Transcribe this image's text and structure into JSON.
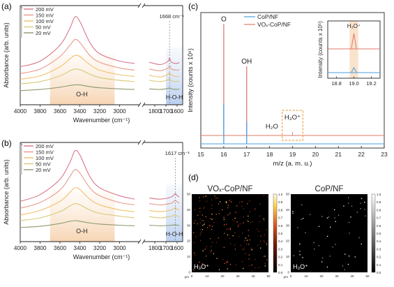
{
  "figure": {
    "panels": {
      "a": {
        "label": "(a)",
        "legend": [
          "200 mV",
          "150 mV",
          "100 mV",
          "50 mV",
          "20 mV"
        ],
        "peak_label": "1668 cm⁻¹",
        "region_left": "O-H",
        "region_right": "H-O-H"
      },
      "b": {
        "label": "(b)",
        "legend": [
          "200 mV",
          "150 mV",
          "100 mV",
          "50 mV",
          "20 mV"
        ],
        "peak_label": "1617 cm⁻¹",
        "region_left": "O-H",
        "region_right": "H-O-H"
      },
      "c": {
        "label": "(c)",
        "legend": [
          "CoP/NF",
          "VOₓ-CoP/NF"
        ],
        "peak_labels": [
          "O",
          "OH",
          "H₂O",
          "H₃O⁺"
        ],
        "inset_peak_label": "H₃O⁺"
      },
      "d": {
        "label": "(d)",
        "map_titles": [
          "VOₓ-CoP/NF",
          "CoP/NF"
        ],
        "map_ion_label": "H₃O⁺",
        "map_unit": "μm",
        "colorbar_ticks": [
          "1.0",
          "0.9",
          "0.8",
          "0.7",
          "0.6",
          "0.5",
          "0.4",
          "0.3",
          "0.2",
          "0.1",
          "0.0"
        ]
      }
    },
    "colors": {
      "200 mV": "#d9788a",
      "150 mV": "#e89a8a",
      "100 mV": "#f0c16a",
      "50 mV": "#d9c87a",
      "20 mV": "#8e9a6e",
      "CoP/NF": "#4a9fe0",
      "VOx-CoP/NF": "#e07a6a",
      "band_orange": "#f7dcc0",
      "band_blue": "#c9daf2"
    }
  },
  "chart_data": [
    {
      "type": "line",
      "panel": "a",
      "xlabel": "Wavenumber (cm⁻¹)",
      "ylabel": "Absorbance (arb. units)",
      "xlim": [
        4000,
        1550
      ],
      "axis_break": [
        2800,
        1900
      ],
      "xticks": [
        4000,
        3800,
        3600,
        3400,
        3200,
        3000,
        1800,
        1700,
        1600
      ],
      "x": [
        4000,
        3800,
        3600,
        3500,
        3450,
        3400,
        3300,
        3200,
        3000,
        2850,
        1850,
        1750,
        1680,
        1668,
        1650,
        1600,
        1580
      ],
      "series": [
        {
          "name": "200 mV",
          "values": [
            0.62,
            0.72,
            1.0,
            1.3,
            1.5,
            1.42,
            1.05,
            0.85,
            0.72,
            0.68,
            0.7,
            0.66,
            0.72,
            0.78,
            0.7,
            0.68,
            0.7
          ]
        },
        {
          "name": "150 mV",
          "values": [
            0.5,
            0.58,
            0.8,
            1.0,
            1.1,
            1.05,
            0.82,
            0.7,
            0.6,
            0.56,
            0.58,
            0.55,
            0.6,
            0.64,
            0.58,
            0.56,
            0.57
          ]
        },
        {
          "name": "100 mV",
          "values": [
            0.4,
            0.46,
            0.62,
            0.76,
            0.82,
            0.8,
            0.66,
            0.56,
            0.48,
            0.45,
            0.47,
            0.44,
            0.49,
            0.52,
            0.47,
            0.45,
            0.46
          ]
        },
        {
          "name": "50 mV",
          "values": [
            0.32,
            0.36,
            0.46,
            0.55,
            0.58,
            0.57,
            0.49,
            0.43,
            0.38,
            0.36,
            0.38,
            0.36,
            0.39,
            0.41,
            0.37,
            0.36,
            0.37
          ]
        },
        {
          "name": "20 mV",
          "values": [
            0.2,
            0.22,
            0.26,
            0.29,
            0.3,
            0.3,
            0.27,
            0.25,
            0.23,
            0.22,
            0.23,
            0.22,
            0.24,
            0.25,
            0.23,
            0.22,
            0.23
          ]
        }
      ],
      "annotations": [
        "1668 cm⁻¹",
        "O-H",
        "H-O-H"
      ]
    },
    {
      "type": "line",
      "panel": "b",
      "xlabel": "Wavenumber (cm⁻¹)",
      "ylabel": "Absorbance (arb. units)",
      "xlim": [
        4000,
        1550
      ],
      "axis_break": [
        2800,
        1900
      ],
      "xticks": [
        4000,
        3800,
        3600,
        3400,
        3200,
        3000,
        1800,
        1700,
        1600
      ],
      "x": [
        4000,
        3800,
        3600,
        3500,
        3450,
        3400,
        3300,
        3200,
        3000,
        2850,
        1850,
        1750,
        1650,
        1617,
        1600,
        1580
      ],
      "series": [
        {
          "name": "200 mV",
          "values": [
            0.66,
            0.78,
            1.05,
            1.35,
            1.55,
            1.48,
            1.1,
            0.9,
            0.76,
            0.7,
            0.72,
            0.7,
            0.74,
            0.8,
            0.76,
            0.74
          ]
        },
        {
          "name": "150 mV",
          "values": [
            0.54,
            0.64,
            0.86,
            1.1,
            1.22,
            1.16,
            0.9,
            0.76,
            0.64,
            0.6,
            0.62,
            0.6,
            0.63,
            0.68,
            0.65,
            0.63
          ]
        },
        {
          "name": "100 mV",
          "values": [
            0.42,
            0.5,
            0.66,
            0.82,
            0.9,
            0.87,
            0.7,
            0.6,
            0.51,
            0.48,
            0.5,
            0.48,
            0.51,
            0.55,
            0.52,
            0.51
          ]
        },
        {
          "name": "50 mV",
          "values": [
            0.32,
            0.37,
            0.48,
            0.58,
            0.62,
            0.6,
            0.51,
            0.45,
            0.4,
            0.37,
            0.39,
            0.37,
            0.4,
            0.42,
            0.4,
            0.39
          ]
        },
        {
          "name": "20 mV",
          "values": [
            0.2,
            0.22,
            0.27,
            0.31,
            0.32,
            0.31,
            0.28,
            0.26,
            0.24,
            0.23,
            0.24,
            0.23,
            0.24,
            0.25,
            0.24,
            0.24
          ]
        }
      ],
      "annotations": [
        "1617 cm⁻¹",
        "O-H",
        "H-O-H"
      ]
    },
    {
      "type": "line",
      "panel": "c",
      "xlabel": "m/z (a. m. u.)",
      "ylabel": "Intensity (counts x 10⁶)",
      "xlim": [
        15,
        23
      ],
      "xticks": [
        15,
        16,
        17,
        18,
        19,
        20,
        21,
        22,
        23
      ],
      "series": [
        {
          "name": "CoP/NF",
          "peaks": [
            [
              16,
              0.3
            ],
            [
              17,
              0.17
            ]
          ]
        },
        {
          "name": "VOₓ-CoP/NF",
          "peaks": [
            [
              16,
              0.84
            ],
            [
              17,
              0.52
            ]
          ]
        }
      ],
      "annotations": [
        "O",
        "OH",
        "H₂O",
        "H₃O⁺"
      ],
      "inset": {
        "xlabel": "",
        "ylabel": "Intensity (counts x 10⁵)",
        "xlim": [
          18.7,
          19.3
        ],
        "xticks": [
          18.8,
          19.0,
          19.2
        ],
        "series": [
          {
            "name": "CoP/NF",
            "peaks": [
              [
                19.0,
                0.18
              ]
            ]
          },
          {
            "name": "VOₓ-CoP/NF",
            "peaks": [
              [
                19.0,
                0.55
              ]
            ]
          }
        ]
      }
    },
    {
      "type": "heatmap",
      "panel": "d",
      "maps": [
        {
          "title": "VOₓ-CoP/NF",
          "axis_ticks": [
            0,
            10,
            20,
            30,
            40,
            50
          ],
          "colorbar_range": [
            0,
            1.0
          ]
        },
        {
          "title": "CoP/NF",
          "axis_ticks": [
            0,
            10,
            20,
            30,
            40,
            50
          ],
          "colorbar_range": [
            0,
            1.0
          ]
        }
      ]
    }
  ]
}
